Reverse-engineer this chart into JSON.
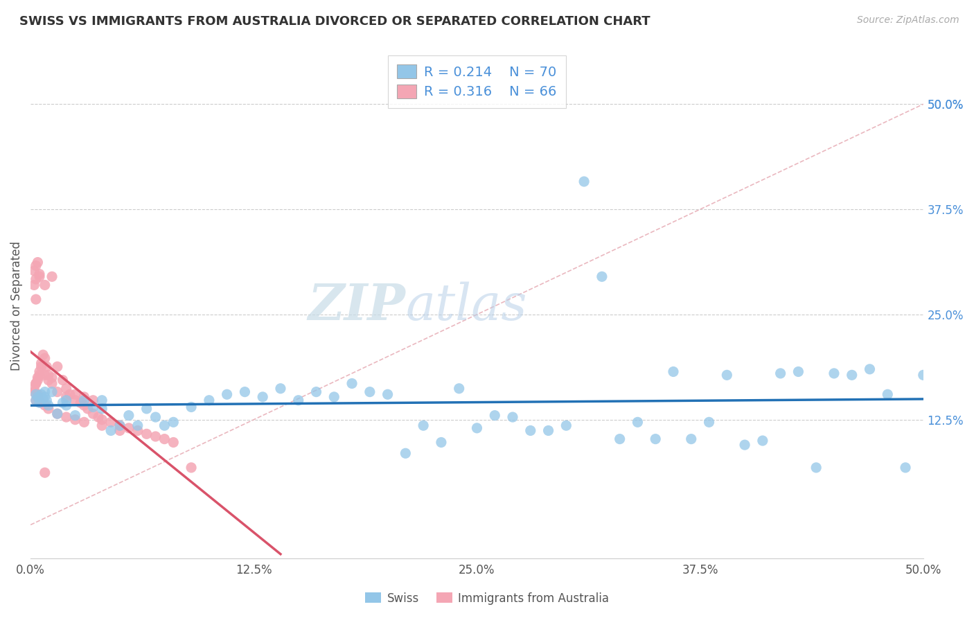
{
  "title": "SWISS VS IMMIGRANTS FROM AUSTRALIA DIVORCED OR SEPARATED CORRELATION CHART",
  "source": "Source: ZipAtlas.com",
  "ylabel": "Divorced or Separated",
  "xlim": [
    0.0,
    0.5
  ],
  "ylim": [
    -0.04,
    0.56
  ],
  "xtick_vals": [
    0.0,
    0.125,
    0.25,
    0.375,
    0.5
  ],
  "xtick_labels": [
    "0.0%",
    "12.5%",
    "25.0%",
    "37.5%",
    "50.0%"
  ],
  "ytick_vals": [
    0.125,
    0.25,
    0.375,
    0.5
  ],
  "ytick_labels": [
    "12.5%",
    "25.0%",
    "37.5%",
    "50.0%"
  ],
  "swiss_R": 0.214,
  "swiss_N": 70,
  "aus_R": 0.316,
  "aus_N": 66,
  "swiss_color": "#93c6e8",
  "aus_color": "#f4a6b4",
  "swiss_line_color": "#2271b5",
  "aus_line_color": "#d9536a",
  "diag_line_color": "#e8b0b8",
  "watermark_color": "#dce8f0",
  "legend_labels": [
    "Swiss",
    "Immigrants from Australia"
  ],
  "swiss_x": [
    0.003,
    0.004,
    0.005,
    0.006,
    0.007,
    0.008,
    0.009,
    0.01,
    0.012,
    0.015,
    0.018,
    0.02,
    0.025,
    0.03,
    0.035,
    0.04,
    0.045,
    0.05,
    0.055,
    0.06,
    0.065,
    0.07,
    0.075,
    0.08,
    0.09,
    0.1,
    0.11,
    0.12,
    0.13,
    0.14,
    0.15,
    0.16,
    0.17,
    0.18,
    0.19,
    0.2,
    0.21,
    0.22,
    0.23,
    0.24,
    0.25,
    0.26,
    0.27,
    0.28,
    0.29,
    0.3,
    0.31,
    0.32,
    0.33,
    0.34,
    0.35,
    0.36,
    0.37,
    0.38,
    0.39,
    0.4,
    0.41,
    0.42,
    0.43,
    0.44,
    0.45,
    0.46,
    0.47,
    0.48,
    0.49,
    0.5,
    0.003,
    0.008,
    0.02,
    0.04
  ],
  "swiss_y": [
    0.148,
    0.152,
    0.145,
    0.155,
    0.15,
    0.158,
    0.148,
    0.142,
    0.158,
    0.132,
    0.145,
    0.148,
    0.13,
    0.148,
    0.14,
    0.148,
    0.112,
    0.118,
    0.13,
    0.118,
    0.138,
    0.128,
    0.118,
    0.122,
    0.14,
    0.148,
    0.155,
    0.158,
    0.152,
    0.162,
    0.148,
    0.158,
    0.152,
    0.168,
    0.158,
    0.155,
    0.085,
    0.118,
    0.098,
    0.162,
    0.115,
    0.13,
    0.128,
    0.112,
    0.112,
    0.118,
    0.408,
    0.295,
    0.102,
    0.122,
    0.102,
    0.182,
    0.102,
    0.122,
    0.178,
    0.095,
    0.1,
    0.18,
    0.182,
    0.068,
    0.18,
    0.178,
    0.185,
    0.155,
    0.068,
    0.178,
    0.155,
    0.152,
    0.142,
    0.138
  ],
  "aus_x": [
    0.002,
    0.003,
    0.004,
    0.005,
    0.006,
    0.007,
    0.008,
    0.009,
    0.01,
    0.012,
    0.015,
    0.018,
    0.02,
    0.022,
    0.025,
    0.028,
    0.03,
    0.032,
    0.035,
    0.038,
    0.04,
    0.045,
    0.05,
    0.055,
    0.06,
    0.065,
    0.07,
    0.075,
    0.08,
    0.09,
    0.002,
    0.003,
    0.004,
    0.005,
    0.006,
    0.008,
    0.01,
    0.012,
    0.015,
    0.02,
    0.025,
    0.03,
    0.035,
    0.003,
    0.004,
    0.006,
    0.008,
    0.01,
    0.015,
    0.02,
    0.025,
    0.03,
    0.04,
    0.05,
    0.002,
    0.003,
    0.004,
    0.005,
    0.008,
    0.012,
    0.002,
    0.003,
    0.005,
    0.008,
    0.003,
    0.004
  ],
  "aus_y": [
    0.158,
    0.168,
    0.175,
    0.182,
    0.192,
    0.202,
    0.198,
    0.188,
    0.178,
    0.175,
    0.188,
    0.172,
    0.162,
    0.155,
    0.148,
    0.145,
    0.142,
    0.138,
    0.132,
    0.128,
    0.125,
    0.122,
    0.118,
    0.115,
    0.112,
    0.108,
    0.105,
    0.102,
    0.098,
    0.068,
    0.162,
    0.168,
    0.172,
    0.178,
    0.188,
    0.178,
    0.172,
    0.168,
    0.158,
    0.152,
    0.155,
    0.152,
    0.148,
    0.148,
    0.152,
    0.145,
    0.142,
    0.138,
    0.132,
    0.128,
    0.125,
    0.122,
    0.118,
    0.112,
    0.302,
    0.308,
    0.312,
    0.298,
    0.062,
    0.295,
    0.285,
    0.292,
    0.295,
    0.285,
    0.268,
    0.155
  ]
}
